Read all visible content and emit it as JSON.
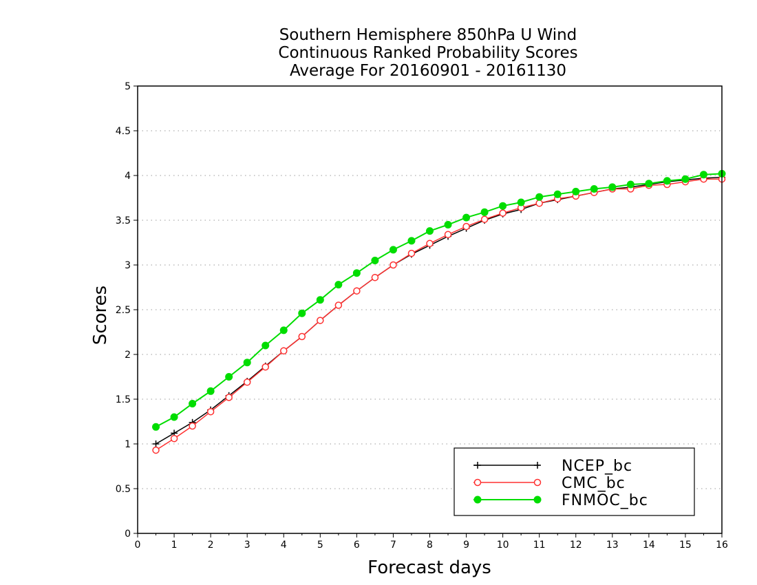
{
  "chart_data": {
    "type": "line",
    "title": [
      "Southern Hemisphere 850hPa U Wind",
      "Continuous Ranked Probability Scores",
      "Average For 20160901 - 20161130"
    ],
    "xlabel": "Forecast days",
    "ylabel": "Scores",
    "xlim": [
      0,
      16
    ],
    "ylim": [
      0,
      5
    ],
    "xticks": [
      0,
      1,
      2,
      3,
      4,
      5,
      6,
      7,
      8,
      9,
      10,
      11,
      12,
      13,
      14,
      15,
      16
    ],
    "yticks": [
      0,
      0.5,
      1,
      1.5,
      2,
      2.5,
      3,
      3.5,
      4,
      4.5,
      5
    ],
    "ytick_labels": [
      "0",
      "0.5",
      "1",
      "1.5",
      "2",
      "2.5",
      "3",
      "3.5",
      "4",
      "4.5",
      "5"
    ],
    "grid": "horizontal dotted",
    "legend_position": "bottom-right",
    "x": [
      0.5,
      1,
      1.5,
      2,
      2.5,
      3,
      3.5,
      4,
      4.5,
      5,
      5.5,
      6,
      6.5,
      7,
      7.5,
      8,
      8.5,
      9,
      9.5,
      10,
      10.5,
      11,
      11.5,
      12,
      12.5,
      13,
      13.5,
      14,
      14.5,
      15,
      15.5,
      16
    ],
    "series": [
      {
        "name": "NCEP_bc",
        "color": "#000000",
        "marker": "plus",
        "values": [
          1.0,
          1.12,
          1.24,
          1.38,
          1.54,
          1.7,
          1.87,
          2.04,
          2.2,
          2.38,
          2.55,
          2.71,
          2.86,
          3.0,
          3.12,
          3.22,
          3.32,
          3.41,
          3.5,
          3.57,
          3.62,
          3.69,
          3.73,
          3.77,
          3.81,
          3.85,
          3.87,
          3.9,
          3.93,
          3.95,
          3.97,
          3.98
        ]
      },
      {
        "name": "CMC_bc",
        "color": "#ff3030",
        "marker": "open-circle",
        "values": [
          0.93,
          1.06,
          1.2,
          1.36,
          1.52,
          1.69,
          1.86,
          2.04,
          2.2,
          2.38,
          2.55,
          2.71,
          2.86,
          3.0,
          3.13,
          3.24,
          3.34,
          3.43,
          3.51,
          3.58,
          3.64,
          3.69,
          3.74,
          3.77,
          3.81,
          3.85,
          3.85,
          3.89,
          3.9,
          3.93,
          3.96,
          3.96
        ]
      },
      {
        "name": "FNMOC_bc",
        "color": "#00dd00",
        "marker": "filled-circle",
        "values": [
          1.19,
          1.3,
          1.45,
          1.59,
          1.75,
          1.91,
          2.1,
          2.27,
          2.46,
          2.61,
          2.78,
          2.91,
          3.05,
          3.17,
          3.27,
          3.38,
          3.45,
          3.53,
          3.59,
          3.66,
          3.7,
          3.76,
          3.79,
          3.82,
          3.85,
          3.87,
          3.9,
          3.91,
          3.94,
          3.96,
          4.01,
          4.02
        ]
      }
    ]
  }
}
